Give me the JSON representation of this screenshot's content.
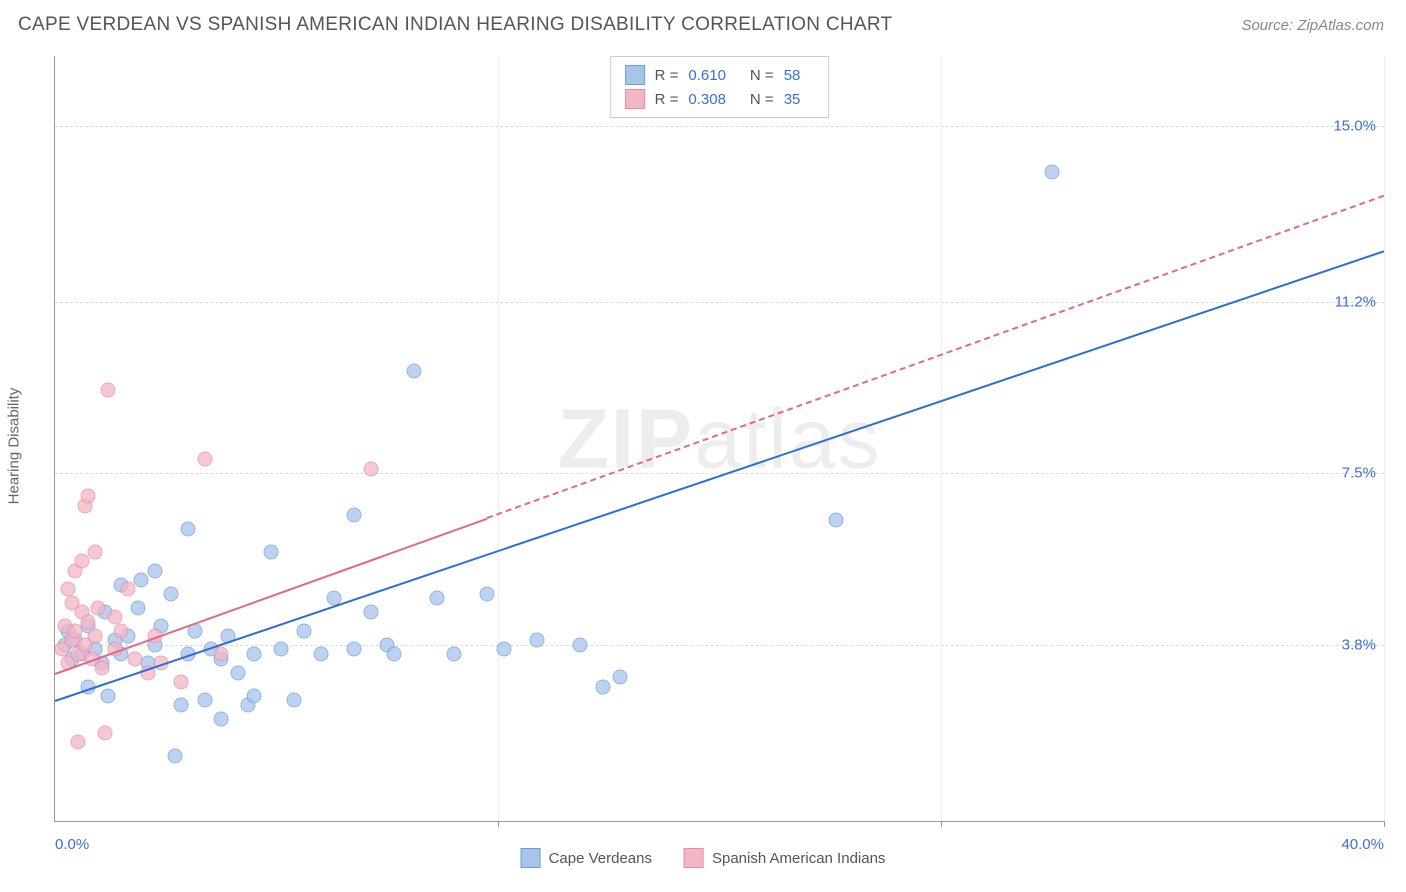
{
  "header": {
    "title": "CAPE VERDEAN VS SPANISH AMERICAN INDIAN HEARING DISABILITY CORRELATION CHART",
    "source": "Source: ZipAtlas.com"
  },
  "ylabel": "Hearing Disability",
  "watermark_a": "ZIP",
  "watermark_b": "atlas",
  "chart": {
    "type": "scatter",
    "background_color": "#ffffff",
    "grid_color": "#dddddd",
    "axis_color": "#999999",
    "text_color": "#555555",
    "value_color": "#3b6fd4",
    "xlim": [
      0,
      40
    ],
    "ylim": [
      0,
      16.5
    ],
    "y_gridlines": [
      3.8,
      7.5,
      11.2,
      15.0
    ],
    "y_tick_labels": [
      "3.8%",
      "7.5%",
      "11.2%",
      "15.0%"
    ],
    "x_gridlines": [
      13.33,
      26.67,
      40
    ],
    "x_tick_labels": [
      "0.0%",
      "40.0%"
    ],
    "series": [
      {
        "name": "Cape Verdeans",
        "color_fill": "#a7c4ea",
        "color_stroke": "#6b9de0",
        "marker_size": 15,
        "opacity": 0.75,
        "r_value": "0.610",
        "n_value": "58",
        "trend": {
          "x0": 0,
          "y0": 2.6,
          "x1": 40,
          "y1": 12.3,
          "color": "#2b6fd6",
          "solid_until": 40
        },
        "points": [
          [
            0.3,
            3.8
          ],
          [
            0.4,
            4.1
          ],
          [
            0.5,
            3.5
          ],
          [
            0.6,
            3.9
          ],
          [
            0.8,
            3.6
          ],
          [
            1.0,
            2.9
          ],
          [
            1.0,
            4.2
          ],
          [
            1.2,
            3.7
          ],
          [
            1.4,
            3.4
          ],
          [
            1.5,
            4.5
          ],
          [
            1.6,
            2.7
          ],
          [
            1.8,
            3.9
          ],
          [
            2.0,
            5.1
          ],
          [
            2.0,
            3.6
          ],
          [
            2.2,
            4.0
          ],
          [
            2.5,
            4.6
          ],
          [
            2.6,
            5.2
          ],
          [
            2.8,
            3.4
          ],
          [
            3.0,
            5.4
          ],
          [
            3.0,
            3.8
          ],
          [
            3.2,
            4.2
          ],
          [
            3.5,
            4.9
          ],
          [
            3.6,
            1.4
          ],
          [
            3.8,
            2.5
          ],
          [
            4.0,
            6.3
          ],
          [
            4.0,
            3.6
          ],
          [
            4.2,
            4.1
          ],
          [
            4.5,
            2.6
          ],
          [
            4.7,
            3.7
          ],
          [
            5.0,
            3.5
          ],
          [
            5.0,
            2.2
          ],
          [
            5.2,
            4.0
          ],
          [
            5.5,
            3.2
          ],
          [
            5.8,
            2.5
          ],
          [
            6.0,
            3.6
          ],
          [
            6.0,
            2.7
          ],
          [
            6.5,
            5.8
          ],
          [
            6.8,
            3.7
          ],
          [
            7.2,
            2.6
          ],
          [
            7.5,
            4.1
          ],
          [
            8.0,
            3.6
          ],
          [
            8.4,
            4.8
          ],
          [
            9.0,
            6.6
          ],
          [
            9.0,
            3.7
          ],
          [
            9.5,
            4.5
          ],
          [
            10.0,
            3.8
          ],
          [
            10.2,
            3.6
          ],
          [
            10.8,
            9.7
          ],
          [
            11.5,
            4.8
          ],
          [
            12.0,
            3.6
          ],
          [
            13.0,
            4.9
          ],
          [
            13.5,
            3.7
          ],
          [
            14.5,
            3.9
          ],
          [
            15.8,
            3.8
          ],
          [
            16.5,
            2.9
          ],
          [
            17.0,
            3.1
          ],
          [
            23.5,
            6.5
          ],
          [
            30.0,
            14.0
          ]
        ]
      },
      {
        "name": "Spanish American Indians",
        "color_fill": "#f3b6c5",
        "color_stroke": "#e98aa2",
        "marker_size": 15,
        "opacity": 0.75,
        "r_value": "0.308",
        "n_value": "35",
        "trend": {
          "x0": 0,
          "y0": 3.2,
          "x1": 40,
          "y1": 13.5,
          "color": "#e26a89",
          "solid_until": 13
        },
        "points": [
          [
            0.2,
            3.7
          ],
          [
            0.3,
            4.2
          ],
          [
            0.4,
            3.4
          ],
          [
            0.4,
            5.0
          ],
          [
            0.5,
            4.7
          ],
          [
            0.5,
            3.9
          ],
          [
            0.6,
            5.4
          ],
          [
            0.6,
            4.1
          ],
          [
            0.7,
            1.7
          ],
          [
            0.7,
            3.6
          ],
          [
            0.8,
            4.5
          ],
          [
            0.8,
            5.6
          ],
          [
            0.9,
            3.8
          ],
          [
            0.9,
            6.8
          ],
          [
            1.0,
            4.3
          ],
          [
            1.0,
            7.0
          ],
          [
            1.1,
            3.5
          ],
          [
            1.2,
            5.8
          ],
          [
            1.2,
            4.0
          ],
          [
            1.3,
            4.6
          ],
          [
            1.4,
            3.3
          ],
          [
            1.5,
            1.9
          ],
          [
            1.6,
            9.3
          ],
          [
            1.8,
            4.4
          ],
          [
            1.8,
            3.7
          ],
          [
            2.0,
            4.1
          ],
          [
            2.2,
            5.0
          ],
          [
            2.4,
            3.5
          ],
          [
            2.8,
            3.2
          ],
          [
            3.0,
            4.0
          ],
          [
            3.2,
            3.4
          ],
          [
            3.8,
            3.0
          ],
          [
            4.5,
            7.8
          ],
          [
            5.0,
            3.6
          ],
          [
            9.5,
            7.6
          ]
        ]
      }
    ]
  },
  "legend_top": {
    "r_label": "R  =",
    "n_label": "N  ="
  },
  "legend_bottom": {
    "series_0": "Cape Verdeans",
    "series_1": "Spanish American Indians"
  }
}
